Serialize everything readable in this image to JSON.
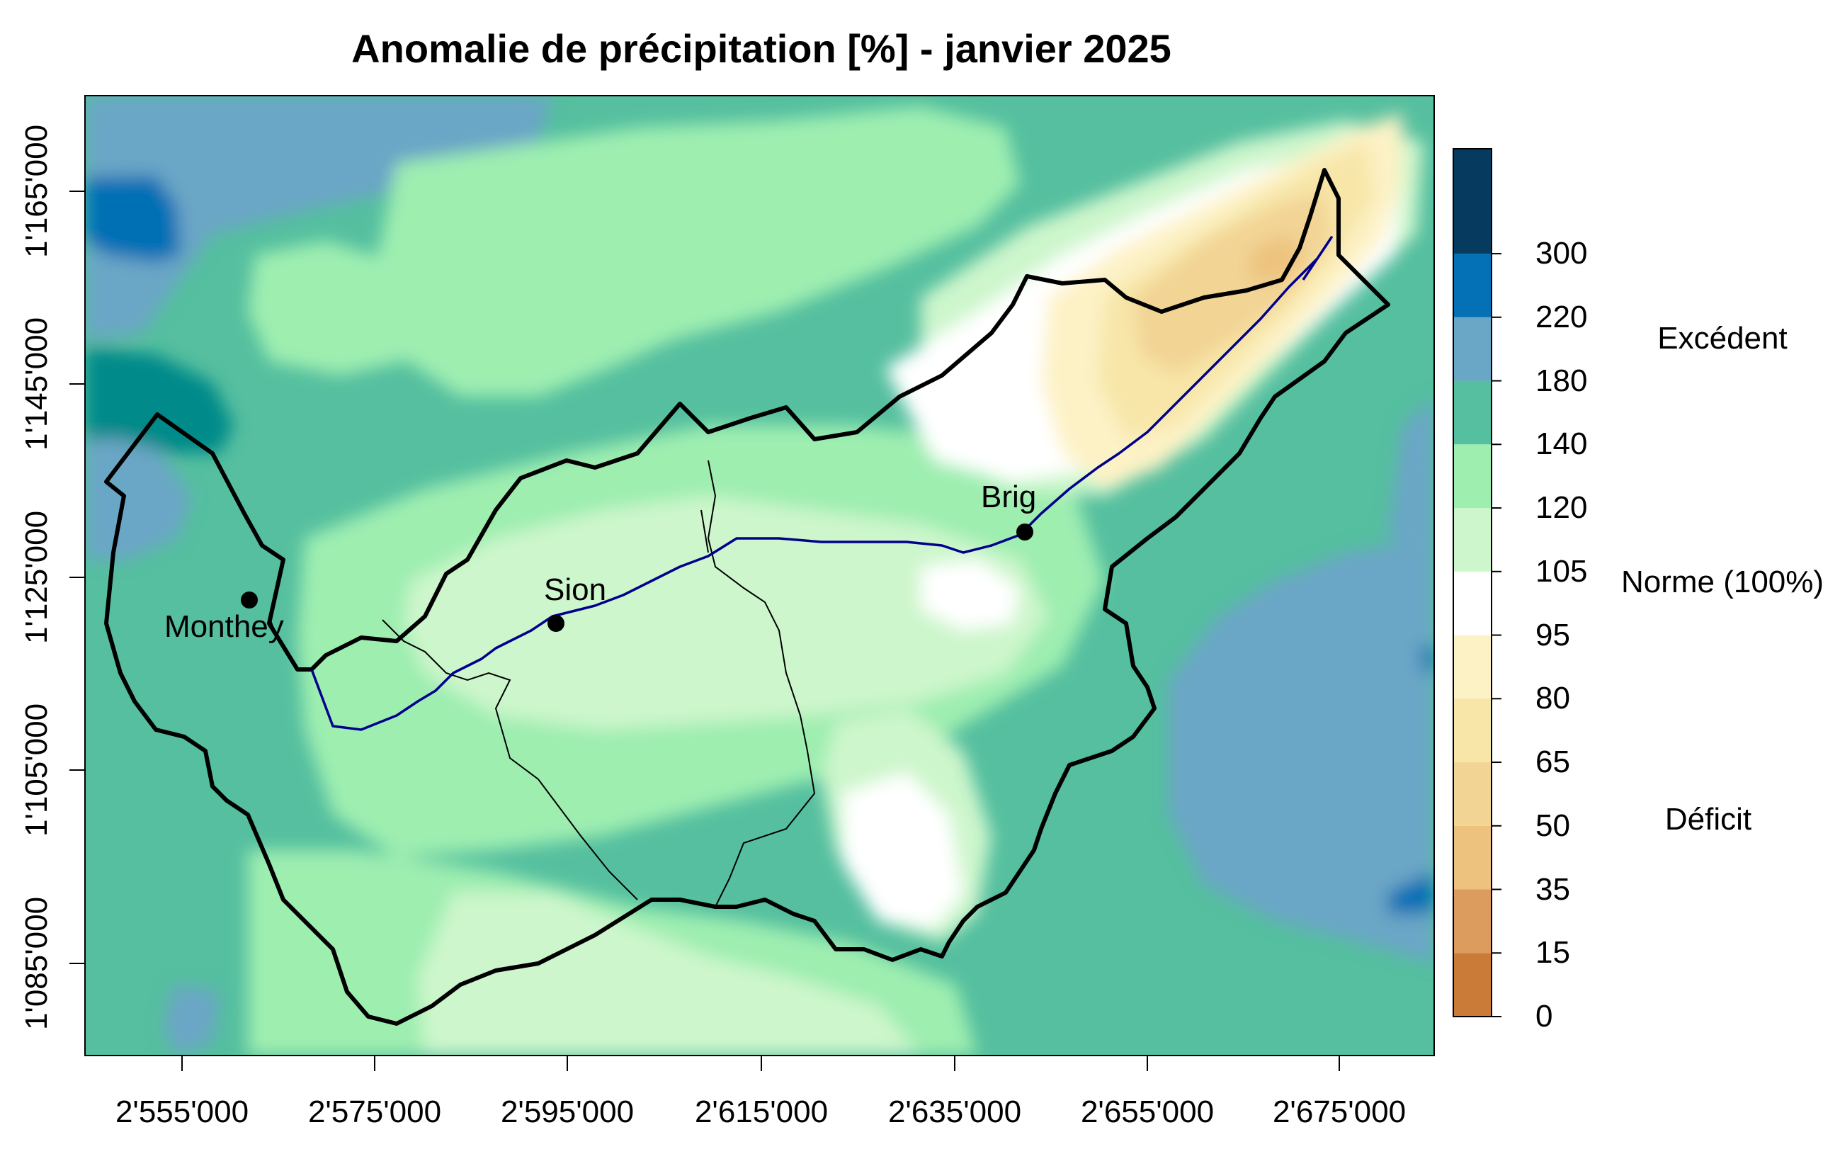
{
  "title": "Anomalie de précipitation [%] - janvier 2025",
  "x_ticks": [
    "2'555'000",
    "2'575'000",
    "2'595'000",
    "2'615'000",
    "2'635'000",
    "2'655'000",
    "2'675'000"
  ],
  "y_ticks": [
    "1'165'000",
    "1'145'000",
    "1'125'000",
    "1'105'000",
    "1'085'000"
  ],
  "colorbar": {
    "breaks": [
      "0",
      "15",
      "35",
      "50",
      "65",
      "80",
      "95",
      "105",
      "120",
      "140",
      "180",
      "220",
      "300"
    ],
    "colors": [
      "#b5651d",
      "#c97b37",
      "#dc9c5e",
      "#edc27e",
      "#f2d495",
      "#f7e6a8",
      "#fdf2c6",
      "#ffffff",
      "#cdf6cc",
      "#9eeeb0",
      "#55bf9f",
      "#6aa6c6",
      "#0470b5",
      "#063a5e"
    ],
    "category_labels": {
      "excess": "Excédent",
      "normal": "Norme (100%)",
      "deficit": "Déficit"
    }
  },
  "cities": [
    {
      "name": "Monthey"
    },
    {
      "name": "Sion"
    },
    {
      "name": "Brig"
    }
  ],
  "map_colors": {
    "frame_fill": "#55bf9f",
    "border": "#000000",
    "river": "#00008b"
  }
}
